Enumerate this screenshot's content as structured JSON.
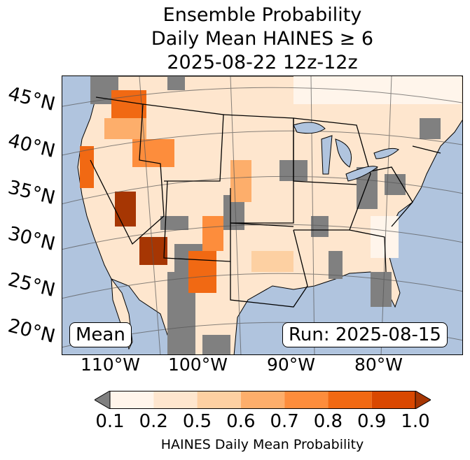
{
  "title": {
    "line1": "Ensemble Probability",
    "line2": "Daily Mean HAINES ≥ 6",
    "line3": "2025-08-22 12z-12z"
  },
  "lat_labels": [
    "45°N",
    "40°N",
    "35°N",
    "30°N",
    "25°N",
    "20°N"
  ],
  "lon_labels": [
    "110°W",
    "100°W",
    "90°W",
    "80°W"
  ],
  "mean_label": "Mean",
  "run_label": "Run: 2025-08-15",
  "colorbar": {
    "ticks": [
      "0.1",
      "0.2",
      "0.5",
      "0.6",
      "0.7",
      "0.8",
      "0.9",
      "1.0"
    ],
    "colors": [
      "#fff5eb",
      "#fee6ce",
      "#fdd0a2",
      "#fdae6b",
      "#fd8d3c",
      "#f16913",
      "#d94801",
      "#a63603"
    ],
    "under_color": "#808080",
    "label": "HAINES Daily Mean Probability"
  },
  "colors": {
    "ocean": "#b0c4de",
    "land_background": "#fff5eb",
    "missing": "#808080"
  }
}
